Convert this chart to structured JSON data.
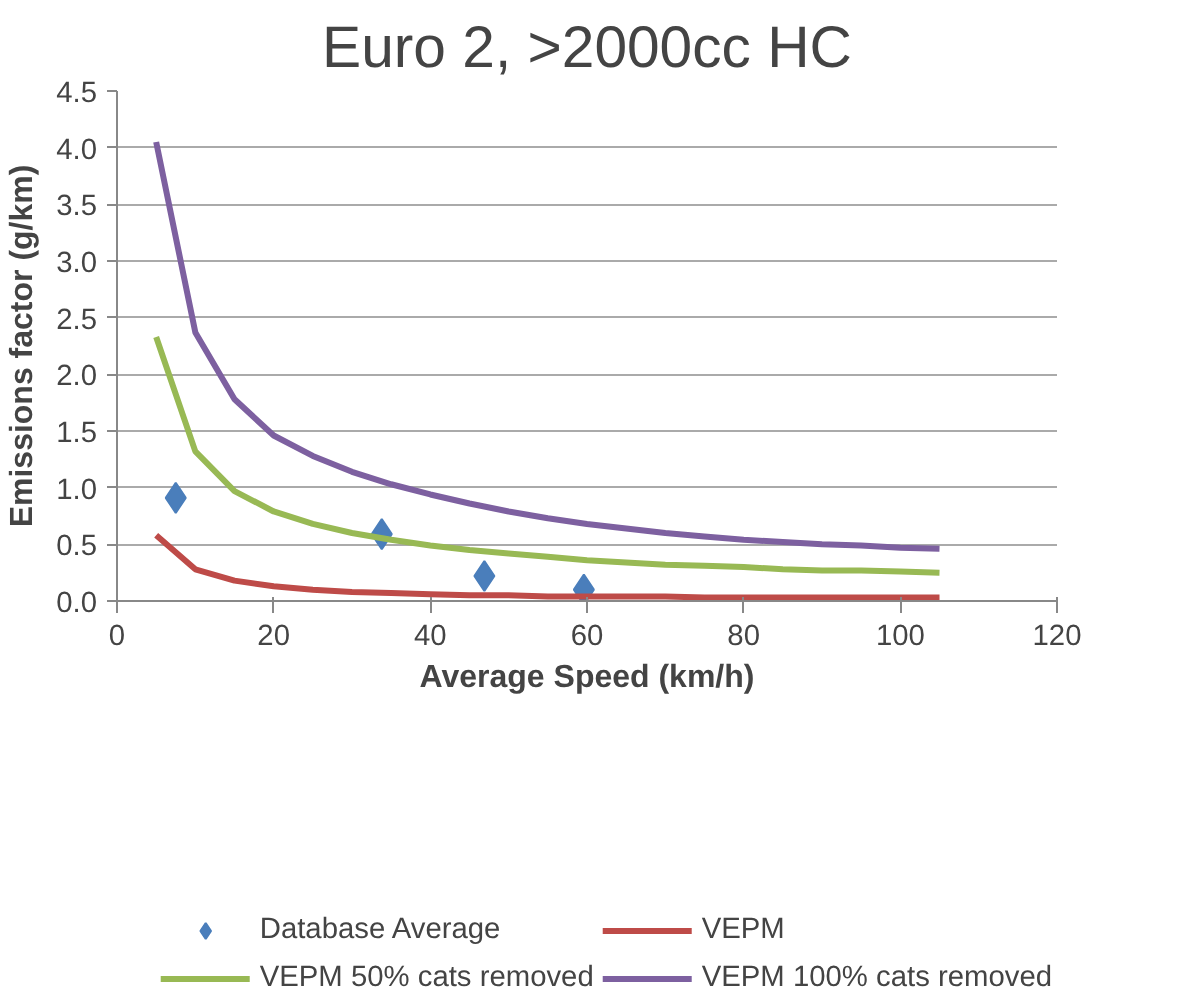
{
  "chart_data": {
    "type": "line",
    "title": "Euro 2, >2000cc HC",
    "xlabel": "Average Speed (km/h)",
    "ylabel": "Emissions factor (g/km)",
    "xlim": [
      0,
      120
    ],
    "xticks": [
      0,
      20,
      40,
      60,
      80,
      100,
      120
    ],
    "ylim": [
      0,
      4.5
    ],
    "yticks": [
      {
        "value": 0,
        "label": "0.0"
      },
      0.5,
      {
        "value": 1,
        "label": "1.0"
      },
      1.5,
      {
        "value": 2,
        "label": "2.0"
      },
      2.5,
      {
        "value": 3,
        "label": "3.0"
      },
      3.5,
      {
        "value": 4,
        "label": "4.0"
      },
      4.5
    ],
    "grid": "y",
    "legend": "bottom",
    "series": [
      {
        "name": "Database Average",
        "type": "scatter",
        "marker": "diamond",
        "color": "#4a7ebb",
        "x": [
          7.5,
          33.8,
          46.9,
          59.6
        ],
        "values": [
          0.91,
          0.59,
          0.22,
          0.1
        ]
      },
      {
        "name": "VEPM",
        "color": "#be4b48",
        "x": [
          5,
          10,
          15,
          20,
          25,
          30,
          35,
          40,
          45,
          50,
          55,
          60,
          65,
          70,
          75,
          80,
          85,
          90,
          95,
          100,
          105
        ],
        "values": [
          0.58,
          0.28,
          0.18,
          0.13,
          0.1,
          0.08,
          0.07,
          0.06,
          0.05,
          0.05,
          0.04,
          0.04,
          0.04,
          0.04,
          0.03,
          0.03,
          0.03,
          0.03,
          0.03,
          0.03,
          0.03
        ]
      },
      {
        "name": "VEPM 50% cats removed",
        "color": "#98b954",
        "x": [
          5,
          10,
          15,
          20,
          25,
          30,
          35,
          40,
          45,
          50,
          55,
          60,
          65,
          70,
          75,
          80,
          85,
          90,
          95,
          100,
          105
        ],
        "values": [
          2.33,
          1.32,
          0.97,
          0.79,
          0.68,
          0.6,
          0.54,
          0.49,
          0.45,
          0.42,
          0.39,
          0.36,
          0.34,
          0.32,
          0.31,
          0.3,
          0.28,
          0.27,
          0.27,
          0.26,
          0.25
        ]
      },
      {
        "name": "VEPM 100% cats removed",
        "color": "#7d60a0",
        "x": [
          5,
          10,
          15,
          20,
          25,
          30,
          35,
          40,
          45,
          50,
          55,
          60,
          65,
          70,
          75,
          80,
          85,
          90,
          95,
          100,
          105
        ],
        "values": [
          4.05,
          2.37,
          1.78,
          1.46,
          1.28,
          1.14,
          1.03,
          0.94,
          0.86,
          0.79,
          0.73,
          0.68,
          0.64,
          0.6,
          0.57,
          0.54,
          0.52,
          0.5,
          0.49,
          0.47,
          0.46
        ]
      }
    ]
  }
}
